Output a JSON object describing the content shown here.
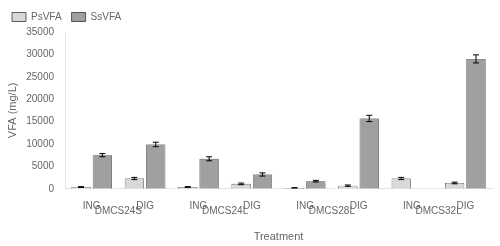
{
  "chart_data": {
    "type": "bar",
    "categories": [
      "ING",
      "DIG",
      "ING",
      "DIG",
      "ING",
      "DIG",
      "ING",
      "DIG"
    ],
    "groups": [
      "DMCS24S",
      "DMCS24L",
      "DMCS28L",
      "DMCS32L"
    ],
    "series": [
      {
        "name": "PsVFA",
        "color": "#d8d8d8",
        "values": [
          400,
          2300,
          400,
          1100,
          200,
          700,
          2300,
          1300
        ],
        "errors": [
          80,
          250,
          80,
          180,
          60,
          150,
          250,
          180
        ]
      },
      {
        "name": "SsVFA",
        "color": "#a0a0a0",
        "values": [
          7500,
          9900,
          6700,
          3200,
          1700,
          15700,
          0,
          29000
        ],
        "errors": [
          350,
          500,
          450,
          350,
          180,
          700,
          0,
          900
        ]
      }
    ],
    "xlabel": "Treatment",
    "ylabel": "VFA (mg/L)",
    "ylim": [
      0,
      35000
    ],
    "yticks": [
      0,
      5000,
      10000,
      15000,
      20000,
      25000,
      30000,
      35000
    ],
    "grid": false,
    "legend": "upper left"
  }
}
